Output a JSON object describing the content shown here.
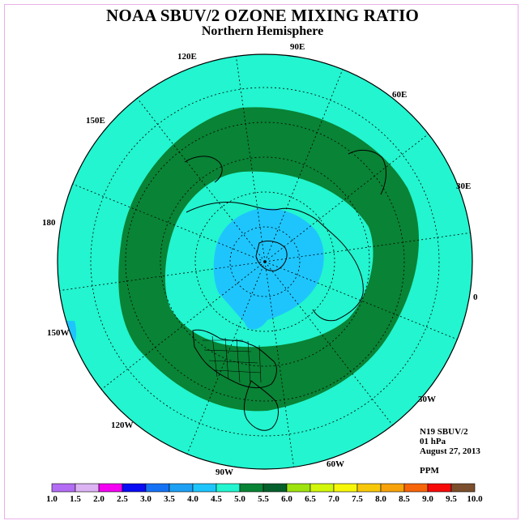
{
  "header": {
    "title": "NOAA SBUV/2 OZONE MIXING RATIO",
    "subtitle": "Northern Hemisphere"
  },
  "map": {
    "projection": "north polar stereographic",
    "longitude_labels": [
      {
        "key": "90E",
        "text": "90E"
      },
      {
        "key": "60E",
        "text": "60E"
      },
      {
        "key": "30E",
        "text": "30E"
      },
      {
        "key": "0",
        "text": "0"
      },
      {
        "key": "30W",
        "text": "30W"
      },
      {
        "key": "60W",
        "text": "60W"
      },
      {
        "key": "90W",
        "text": "90W"
      },
      {
        "key": "120W",
        "text": "120W"
      },
      {
        "key": "150W",
        "text": "150W"
      },
      {
        "key": "180",
        "text": "180"
      },
      {
        "key": "150E",
        "text": "150E"
      },
      {
        "key": "120E",
        "text": "120E"
      }
    ],
    "fill_colors": {
      "background_band": "#22f5cf",
      "middle_ring": "#098335",
      "polar_core": "#1ec5fd",
      "small_patch": "#1ec5fd",
      "coastlines": "#000000",
      "grid": "#000000"
    }
  },
  "info": {
    "instrument": "N19 SBUV/2",
    "pressure": "01 hPa",
    "date": "August 27, 2013",
    "units": "PPM"
  },
  "colorbar": {
    "labels": [
      "1.0",
      "1.5",
      "2.0",
      "2.5",
      "3.0",
      "3.5",
      "4.0",
      "4.5",
      "5.0",
      "5.5",
      "6.0",
      "6.5",
      "7.0",
      "7.5",
      "8.0",
      "8.5",
      "9.0",
      "9.5",
      "10.0"
    ],
    "colors": [
      "#b36cf4",
      "#dcb4f4",
      "#f400f2",
      "#0a0cf4",
      "#1672f4",
      "#1ea0f4",
      "#1ec5fd",
      "#22f5cf",
      "#098335",
      "#06602c",
      "#9ee30d",
      "#d2f70a",
      "#f7f70a",
      "#f7c80a",
      "#f7a20a",
      "#f7650a",
      "#f70a0a",
      "#7b4f2d"
    ]
  }
}
